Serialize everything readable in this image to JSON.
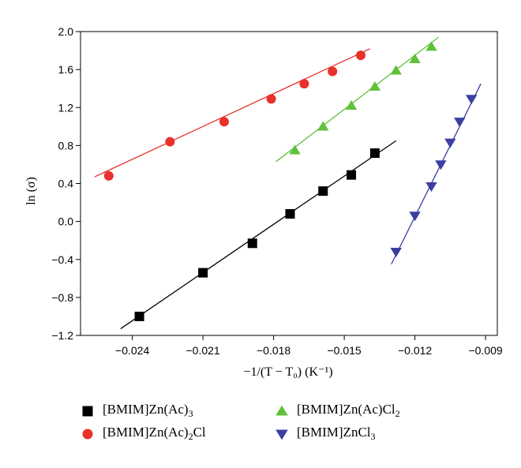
{
  "chart_data": {
    "type": "scatter",
    "xlabel": "−1/(T − T₀) (K⁻¹)",
    "ylabel": "ln (σ)",
    "xlim": [
      -0.0262,
      -0.0085
    ],
    "ylim": [
      -1.2,
      2.0
    ],
    "x_ticks": [
      -0.024,
      -0.021,
      -0.018,
      -0.015,
      -0.012,
      -0.009
    ],
    "x_tick_labels": [
      "−0.024",
      "−0.021",
      "−0.018",
      "−0.015",
      "−0.012",
      "−0.009"
    ],
    "y_ticks": [
      2.0,
      1.6,
      1.2,
      0.8,
      0.4,
      0.0,
      -0.4,
      -0.8,
      -1.2
    ],
    "y_tick_labels": [
      "2.0",
      "1.6",
      "1.2",
      "0.8",
      "0.4",
      "0.0",
      "−0.4",
      "−0.8",
      "−1.2"
    ],
    "grid": false,
    "legend_position": "bottom",
    "series": [
      {
        "name": "[BMIM]Zn(Ac)3",
        "label_html": "[BMIM]Zn(Ac)<sub>3</sub>",
        "marker": "square",
        "color": "#000000",
        "x": [
          -0.0237,
          -0.021,
          -0.0189,
          -0.0173,
          -0.0159,
          -0.0147,
          -0.0137
        ],
        "y": [
          -1.0,
          -0.54,
          -0.23,
          0.08,
          0.32,
          0.49,
          0.72
        ],
        "fit": {
          "x": [
            -0.0245,
            -0.0128
          ],
          "y": [
            -1.13,
            0.85
          ]
        }
      },
      {
        "name": "[BMIM]Zn(Ac)2Cl",
        "label_html": "[BMIM]Zn(Ac)<sub>2</sub>Cl",
        "marker": "circle",
        "color": "#e8312a",
        "x": [
          -0.025,
          -0.0224,
          -0.0201,
          -0.0181,
          -0.0167,
          -0.0155,
          -0.0143
        ],
        "y": [
          0.48,
          0.84,
          1.05,
          1.29,
          1.45,
          1.58,
          1.75
        ],
        "fit": {
          "x": [
            -0.0256,
            -0.0139
          ],
          "y": [
            0.47,
            1.82
          ]
        }
      },
      {
        "name": "[BMIM]Zn(Ac)Cl2",
        "label_html": "[BMIM]Zn(Ac)Cl<sub>2</sub>",
        "marker": "triangle-up",
        "color": "#5fc13a",
        "x": [
          -0.0171,
          -0.0159,
          -0.0147,
          -0.0137,
          -0.0128,
          -0.012,
          -0.0113
        ],
        "y": [
          0.75,
          1.0,
          1.22,
          1.42,
          1.59,
          1.71,
          1.84
        ],
        "fit": {
          "x": [
            -0.0179,
            -0.011
          ],
          "y": [
            0.63,
            1.94
          ]
        }
      },
      {
        "name": "[BMIM]ZnCl3",
        "label_html": "[BMIM]ZnCl<sub>3</sub>",
        "marker": "triangle-down",
        "color": "#3b3fa0",
        "x": [
          -0.0128,
          -0.012,
          -0.0113,
          -0.0109,
          -0.0105,
          -0.0101,
          -0.0096
        ],
        "y": [
          -0.32,
          0.06,
          0.37,
          0.6,
          0.83,
          1.05,
          1.29
        ],
        "fit": {
          "x": [
            -0.013,
            -0.0092
          ],
          "y": [
            -0.45,
            1.45
          ]
        }
      }
    ]
  }
}
